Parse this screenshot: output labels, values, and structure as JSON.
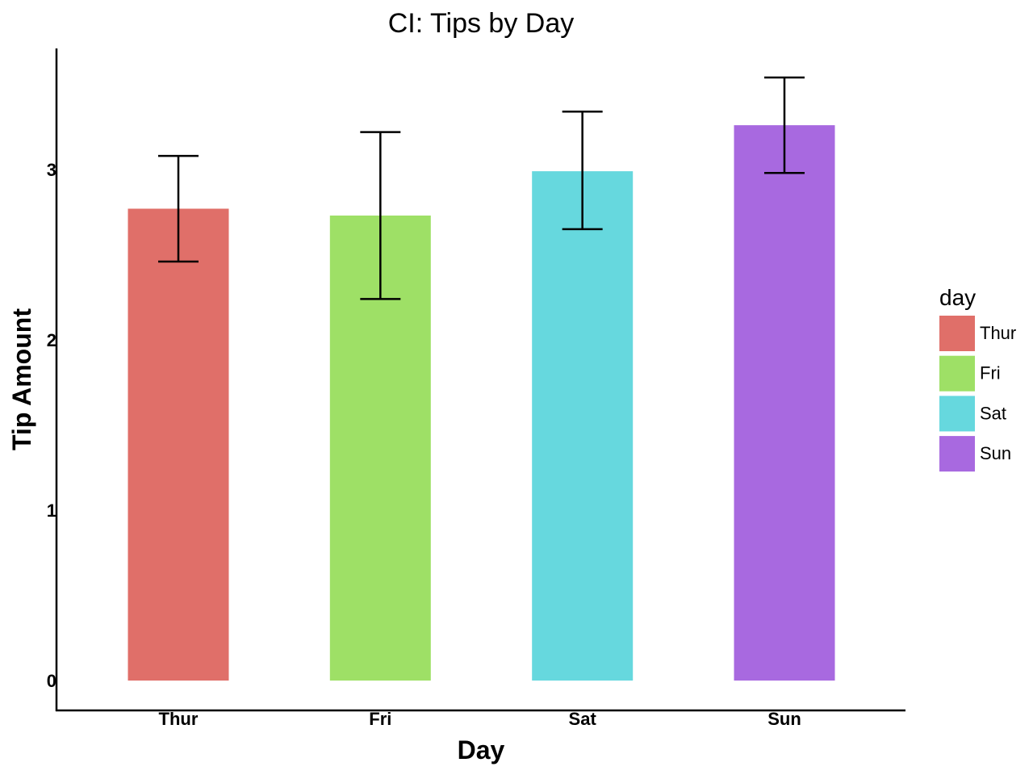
{
  "chart_data": {
    "type": "bar",
    "title": "CI: Tips by Day",
    "xlabel": "Day",
    "ylabel": "Tip Amount",
    "categories": [
      "Thur",
      "Fri",
      "Sat",
      "Sun"
    ],
    "values": [
      2.77,
      2.73,
      2.99,
      3.26
    ],
    "ci_lower": [
      2.46,
      2.24,
      2.65,
      2.98
    ],
    "ci_upper": [
      3.08,
      3.22,
      3.34,
      3.54
    ],
    "colors": [
      "#e06f69",
      "#9ee066",
      "#66d8de",
      "#a869e0"
    ],
    "ylim": [
      0,
      3.65
    ],
    "yticks": [
      "0",
      "1",
      "2",
      "3"
    ],
    "grid": false,
    "legend": {
      "title": "day",
      "placement": "right",
      "items": [
        "Thur",
        "Fri",
        "Sat",
        "Sun"
      ]
    }
  }
}
